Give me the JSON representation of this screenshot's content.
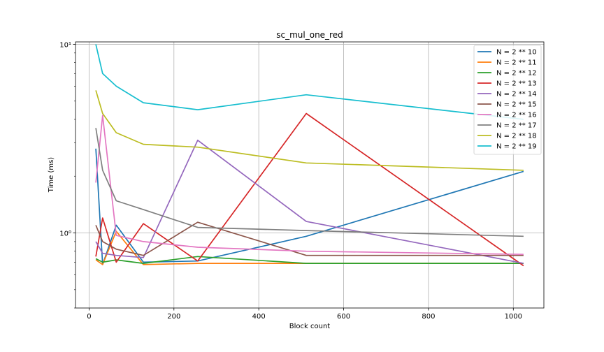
{
  "chart_data": {
    "type": "line",
    "title": "sc_mul_one_red",
    "xlabel": "Block count",
    "ylabel": "Time (ms)",
    "xlim": [
      -32,
      1072
    ],
    "ylim": [
      0.4,
      10.3
    ],
    "yscale": "log",
    "grid": true,
    "legend_position": "top-right",
    "xticks": [
      0,
      200,
      400,
      600,
      800,
      1000
    ],
    "xtick_labels": [
      "0",
      "200",
      "400",
      "600",
      "800",
      "1000"
    ],
    "yticks": [
      1,
      10
    ],
    "ytick_labels": [
      "10⁰",
      "10¹"
    ],
    "x": [
      16,
      32,
      64,
      128,
      256,
      512,
      1024
    ],
    "series": [
      {
        "name": "N = 2 ** 10",
        "color": "#1f77b4",
        "values": [
          2.8,
          0.68,
          1.1,
          0.7,
          0.71,
          0.96,
          2.12
        ]
      },
      {
        "name": "N = 2 ** 11",
        "color": "#ff7f0e",
        "values": [
          0.72,
          0.68,
          1.02,
          0.68,
          0.69,
          0.69,
          0.69
        ]
      },
      {
        "name": "N = 2 ** 12",
        "color": "#2ca02c",
        "values": [
          0.73,
          0.7,
          0.72,
          0.69,
          0.75,
          0.69,
          0.69
        ]
      },
      {
        "name": "N = 2 ** 13",
        "color": "#d62728",
        "values": [
          0.75,
          1.2,
          0.7,
          1.12,
          0.71,
          4.3,
          0.67
        ]
      },
      {
        "name": "N = 2 ** 14",
        "color": "#9467bd",
        "values": [
          0.9,
          0.78,
          0.76,
          0.74,
          3.1,
          1.15,
          0.69
        ]
      },
      {
        "name": "N = 2 ** 15",
        "color": "#8c564b",
        "values": [
          1.1,
          0.9,
          0.82,
          0.76,
          1.14,
          0.76,
          0.76
        ]
      },
      {
        "name": "N = 2 ** 16",
        "color": "#e377c2",
        "values": [
          1.85,
          4.2,
          0.97,
          0.9,
          0.84,
          0.8,
          0.77
        ]
      },
      {
        "name": "N = 2 ** 17",
        "color": "#7f7f7f",
        "values": [
          3.6,
          2.15,
          1.48,
          1.33,
          1.07,
          1.03,
          0.96
        ]
      },
      {
        "name": "N = 2 ** 18",
        "color": "#bcbd22",
        "values": [
          5.7,
          4.3,
          3.4,
          2.95,
          2.85,
          2.35,
          2.15
        ]
      },
      {
        "name": "N = 2 ** 19",
        "color": "#17becf",
        "values": [
          10.0,
          7.0,
          6.0,
          4.9,
          4.5,
          5.4,
          4.0
        ]
      }
    ]
  }
}
